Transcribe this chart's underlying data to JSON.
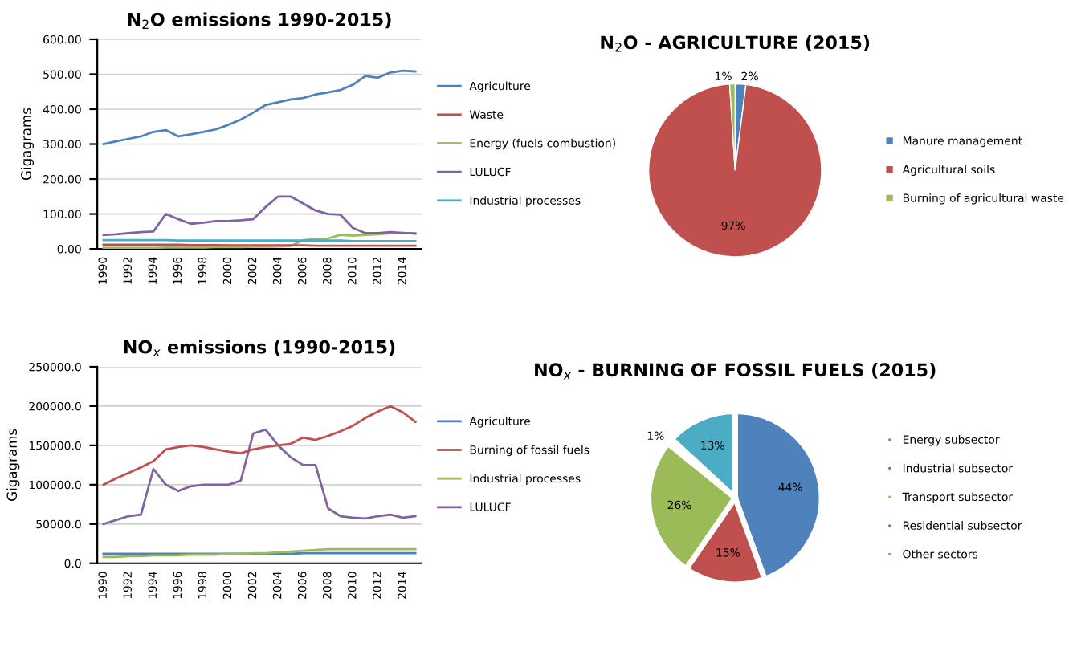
{
  "chart_data": [
    {
      "type": "line",
      "title": "N$_{2}$O emissions 1990-2015)",
      "ylabel": "Gigagrams",
      "categories": [
        "1990",
        null,
        "1992",
        null,
        "1994",
        null,
        "1996",
        null,
        "1998",
        null,
        "2000",
        null,
        "2002",
        null,
        "2004",
        null,
        "2006",
        null,
        "2008",
        null,
        "2010",
        null,
        "2012",
        null,
        "2014",
        null
      ],
      "series": [
        {
          "name": "Agriculture",
          "color": "#4f81bd",
          "values": [
            300,
            308,
            315,
            322,
            335,
            340,
            322,
            328,
            335,
            342,
            355,
            370,
            390,
            412,
            420,
            428,
            432,
            442,
            448,
            455,
            470,
            495,
            490,
            505,
            510,
            508
          ]
        },
        {
          "name": "Waste",
          "color": "#c0504d",
          "values": [
            12,
            12,
            12,
            12,
            12,
            12,
            12,
            11,
            11,
            11,
            10,
            10,
            10,
            10,
            10,
            10,
            10,
            9,
            9,
            9,
            9,
            9,
            9,
            9,
            9,
            9
          ]
        },
        {
          "name": "Energy (fuels combustion)",
          "color": "#9bbb59",
          "values": [
            3,
            3,
            3,
            3,
            3,
            4,
            4,
            4,
            4,
            5,
            5,
            5,
            6,
            6,
            7,
            8,
            25,
            28,
            30,
            40,
            38,
            40,
            42,
            45,
            45,
            44
          ]
        },
        {
          "name": "LULUCF",
          "color": "#8064a2",
          "values": [
            40,
            42,
            45,
            48,
            50,
            100,
            85,
            72,
            75,
            80,
            80,
            82,
            85,
            120,
            150,
            150,
            130,
            110,
            100,
            98,
            60,
            45,
            45,
            48,
            46,
            44
          ]
        },
        {
          "name": "Industrial processes",
          "color": "#4bacc6",
          "values": [
            25,
            25,
            25,
            25,
            25,
            25,
            24,
            24,
            24,
            24,
            24,
            24,
            24,
            24,
            24,
            24,
            24,
            24,
            24,
            24,
            22,
            22,
            22,
            22,
            22,
            22
          ]
        }
      ],
      "ylim": [
        0,
        600
      ],
      "yticks": [
        {
          "value": 0,
          "label": "0.00"
        },
        {
          "value": 100,
          "label": "100.00"
        },
        {
          "value": 200,
          "label": "200.00"
        },
        {
          "value": 300,
          "label": "300.00"
        },
        {
          "value": 400,
          "label": "400.00"
        },
        {
          "value": 500,
          "label": "500.00"
        },
        {
          "value": 600,
          "label": "600.00"
        }
      ],
      "grid": "y",
      "legend": "right"
    },
    {
      "type": "pie",
      "title": "N$_{2}$O - AGRICULTURE (2015)",
      "categories": [
        "Manure management",
        "Agricultural soils",
        "Burning of agricultural waste"
      ],
      "values": [
        2,
        97,
        1
      ],
      "colors": [
        "#4f81bd",
        "#c0504d",
        "#9bbb59"
      ],
      "value_labels": [
        "2%",
        "97%",
        "1%"
      ],
      "legend": "right"
    },
    {
      "type": "line",
      "title": "NO$_{x}$ emissions (1990-2015)",
      "ylabel": "Gigagrams",
      "categories": [
        "1990",
        null,
        "1992",
        null,
        "1994",
        null,
        "1996",
        null,
        "1998",
        null,
        "2000",
        null,
        "2002",
        null,
        "2004",
        null,
        "2006",
        null,
        "2008",
        null,
        "2010",
        null,
        "2012",
        null,
        "2014",
        null
      ],
      "series": [
        {
          "name": "Agriculture",
          "color": "#4f81bd",
          "values": [
            12000,
            12000,
            12000,
            12000,
            12000,
            12000,
            12000,
            12000,
            12000,
            12000,
            12000,
            12000,
            12000,
            12000,
            12000,
            12000,
            13000,
            13000,
            13000,
            13000,
            13000,
            13000,
            13000,
            13000,
            13000,
            13000
          ]
        },
        {
          "name": "Burning of fossil fuels",
          "color": "#c0504d",
          "values": [
            100000,
            108000,
            115000,
            122000,
            130000,
            145000,
            148000,
            150000,
            148000,
            145000,
            142000,
            140000,
            145000,
            148000,
            150000,
            152000,
            160000,
            157000,
            162000,
            168000,
            175000,
            185000,
            193000,
            200000,
            192000,
            180000
          ]
        },
        {
          "name": "Industrial processes",
          "color": "#9bbb59",
          "values": [
            8000,
            8000,
            9000,
            9000,
            10000,
            10000,
            10000,
            11000,
            11000,
            11000,
            12000,
            12000,
            13000,
            13000,
            14000,
            15000,
            16000,
            17000,
            18000,
            18000,
            18000,
            18000,
            18000,
            18000,
            18000,
            18000
          ]
        },
        {
          "name": "LULUCF",
          "color": "#8064a2",
          "values": [
            50000,
            55000,
            60000,
            62000,
            120000,
            100000,
            92000,
            98000,
            100000,
            100000,
            100000,
            105000,
            165000,
            170000,
            150000,
            135000,
            125000,
            125000,
            70000,
            60000,
            58000,
            57000,
            60000,
            62000,
            58000,
            60000
          ]
        }
      ],
      "ylim": [
        0,
        250000
      ],
      "yticks": [
        {
          "value": 0,
          "label": "0.0"
        },
        {
          "value": 50000,
          "label": "50000.0"
        },
        {
          "value": 100000,
          "label": "100000.0"
        },
        {
          "value": 150000,
          "label": "150000.0"
        },
        {
          "value": 200000,
          "label": "200000.0"
        },
        {
          "value": 250000,
          "label": "250000.0"
        }
      ],
      "grid": "y",
      "legend": "right"
    },
    {
      "type": "pie",
      "title": "NO$_{x}$ - BURNING OF FOSSIL FUELS (2015)",
      "categories": [
        "Energy subsector",
        "Industrial subsector",
        "Transport subsector",
        "Residential subsector",
        "Other sectors"
      ],
      "values": [
        44,
        15,
        26,
        1,
        13
      ],
      "colors": [
        "#4f81bd",
        "#c0504d",
        "#9bbb59",
        "#8064a2",
        "#4bacc6"
      ],
      "value_labels": [
        "44%",
        "15%",
        "26%",
        "1%",
        "13%"
      ],
      "legend": "right"
    }
  ]
}
